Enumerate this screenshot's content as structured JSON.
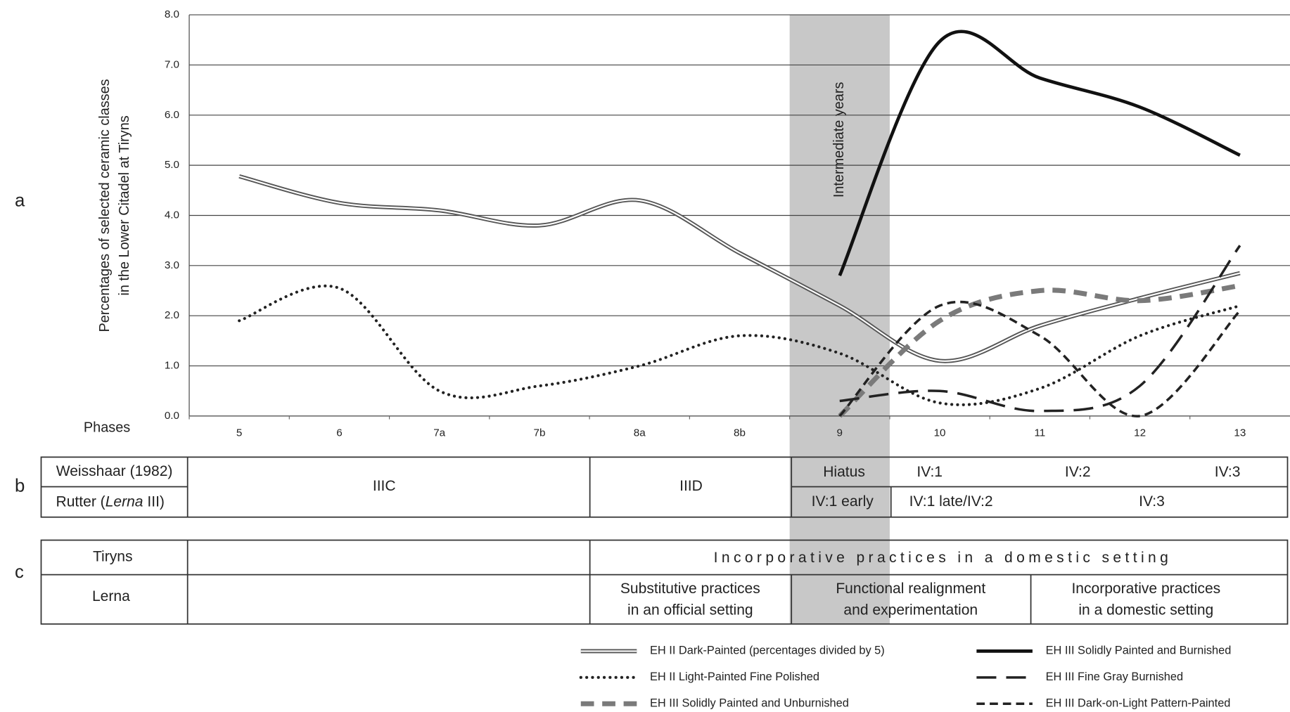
{
  "chart_data": {
    "type": "line",
    "x_label": "Phases",
    "y_label": [
      "Percentages of selected ceramic classes",
      "in the Lower Citadel at Tiryns"
    ],
    "categories": [
      "5",
      "6",
      "7a",
      "7b",
      "8a",
      "8b",
      "9",
      "10",
      "11",
      "12",
      "13"
    ],
    "ylim": [
      0,
      8
    ],
    "yticks": [
      {
        "value": 0,
        "label": "0.0"
      },
      {
        "value": 1,
        "label": "1.0"
      },
      {
        "value": 2,
        "label": "2.0"
      },
      {
        "value": 3,
        "label": "3.0"
      },
      {
        "value": 4,
        "label": "4.0"
      },
      {
        "value": 5,
        "label": "5.0"
      },
      {
        "value": 6,
        "label": "6.0"
      },
      {
        "value": 7,
        "label": "7.0"
      },
      {
        "value": 8,
        "label": "8.0"
      }
    ],
    "grid": true,
    "smooth": true,
    "legend": "bottom",
    "band": {
      "label": "Intermediate years",
      "category": 6,
      "color": "#c8c8c8"
    },
    "series": [
      {
        "name": "EH II Dark-Painted (percentages divided by 5)",
        "style": "double",
        "color": "#555555",
        "values": [
          4.78,
          4.25,
          4.1,
          3.8,
          4.3,
          3.25,
          2.2,
          1.1,
          1.8,
          2.35,
          2.85
        ]
      },
      {
        "name": "EH II Light-Painted Fine Polished",
        "style": "dotted",
        "color": "#222222",
        "values": [
          1.9,
          2.55,
          0.5,
          0.6,
          1.0,
          1.6,
          1.25,
          0.26,
          0.55,
          1.6,
          2.2
        ]
      },
      {
        "name": "EH III Solidly Painted and Unburnished",
        "style": "thick-dash",
        "color": "#7a7a7a",
        "values": [
          null,
          null,
          null,
          null,
          null,
          null,
          0.0,
          1.9,
          2.5,
          2.3,
          2.6
        ]
      },
      {
        "name": "EH III Solidly Painted and Burnished",
        "style": "solid",
        "color": "#111111",
        "values": [
          null,
          null,
          null,
          null,
          null,
          null,
          2.8,
          7.47,
          6.74,
          6.16,
          5.2
        ]
      },
      {
        "name": "EH III Fine Gray Burnished",
        "style": "long-dash",
        "color": "#222222",
        "values": [
          null,
          null,
          null,
          null,
          null,
          null,
          0.3,
          0.5,
          0.1,
          0.6,
          3.4
        ]
      },
      {
        "name": "EH III Dark-on-Light Pattern-Painted",
        "style": "dash",
        "color": "#222222",
        "values": [
          null,
          null,
          null,
          null,
          null,
          null,
          0.0,
          2.2,
          1.6,
          0.0,
          2.1
        ]
      }
    ]
  },
  "panel_labels": [
    "a",
    "b",
    "c"
  ],
  "phase_table": {
    "row_labels": [
      "Weisshaar (1982)",
      [
        "Rutter (",
        "Lerna",
        " III)"
      ]
    ],
    "spanning": [
      "IIIC",
      "IIID"
    ],
    "row1": [
      "Hiatus",
      "IV:1",
      "IV:2",
      "IV:3"
    ],
    "row2": [
      "IV:1 early",
      "IV:1 late/IV:2",
      "IV:3"
    ]
  },
  "practice_table": {
    "row_labels": [
      "Tiryns",
      "Lerna"
    ],
    "tiryns": "Incorporative practices in a domestic setting",
    "lerna": [
      [
        "Substitutive practices",
        "in an official setting"
      ],
      [
        "Functional realignment",
        "and experimentation"
      ],
      [
        "Incorporative practices",
        "in a domestic setting"
      ]
    ]
  }
}
